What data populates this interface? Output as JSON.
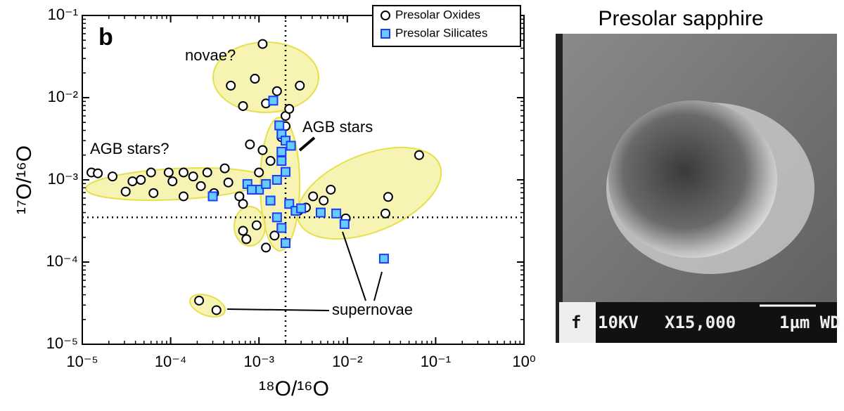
{
  "chart_data": {
    "type": "scatter",
    "panel_label": "b",
    "xlabel": "¹⁸O/¹⁶O",
    "ylabel": "¹⁷O/¹⁶O",
    "log_x": true,
    "log_y": true,
    "xlim": [
      1e-05,
      1
    ],
    "ylim": [
      1e-05,
      0.1
    ],
    "xticks": [
      {
        "value": 1e-05,
        "label": "10⁻⁵"
      },
      {
        "value": 0.0001,
        "label": "10⁻⁴"
      },
      {
        "value": 0.001,
        "label": "10⁻³"
      },
      {
        "value": 0.01,
        "label": "10⁻²"
      },
      {
        "value": 0.1,
        "label": "10⁻¹"
      },
      {
        "value": 1,
        "label": "10⁰"
      }
    ],
    "yticks": [
      {
        "value": 1e-05,
        "label": "10⁻⁵"
      },
      {
        "value": 0.0001,
        "label": "10⁻⁴"
      },
      {
        "value": 0.001,
        "label": "10⁻³"
      },
      {
        "value": 0.01,
        "label": "10⁻²"
      },
      {
        "value": 0.1,
        "label": "10⁻¹"
      }
    ],
    "reference_lines": {
      "x": 0.002,
      "y": 0.00035
    },
    "legend": "upper right",
    "annotations": [
      "novae?",
      "AGB stars",
      "AGB stars?",
      "supernovae"
    ],
    "series": [
      {
        "name": "Presolar Oxides",
        "color": "#ffffff",
        "edgecolor": "#000000",
        "marker": "circle",
        "x": [
          0.0011,
          0.0009,
          0.00048,
          0.0029,
          0.00066,
          0.0012,
          0.0016,
          0.065,
          0.029,
          0.027,
          0.0096,
          1.27e-05,
          1.5e-05,
          2.2e-05,
          3.1e-05,
          3.7e-05,
          4.6e-05,
          6e-05,
          6.4e-05,
          9.5e-05,
          0.000105,
          0.00014,
          0.00014,
          0.00018,
          0.00022,
          0.00026,
          0.00031,
          0.00041,
          0.00045,
          0.0006,
          0.00066,
          0.00079,
          0.0011,
          0.00135,
          0.001,
          0.00066,
          0.00072,
          0.0012,
          0.00094,
          0.0015,
          0.0041,
          0.0054,
          0.0065,
          0.0034,
          0.0028,
          0.00021,
          0.00033,
          0.002,
          0.002,
          0.0022,
          0.0018
        ],
        "values": [
          0.045,
          0.017,
          0.014,
          0.014,
          0.0079,
          0.0085,
          0.012,
          0.002,
          0.00062,
          0.00039,
          0.00034,
          0.00123,
          0.0012,
          0.0011,
          0.00072,
          0.00096,
          0.001,
          0.00123,
          0.00069,
          0.00123,
          0.00096,
          0.00123,
          0.00063,
          0.0011,
          0.00084,
          0.00123,
          0.00069,
          0.00138,
          0.00093,
          0.00063,
          0.00051,
          0.0027,
          0.0023,
          0.0017,
          0.00123,
          0.00024,
          0.00019,
          0.00015,
          0.00028,
          0.00021,
          0.00063,
          0.00056,
          0.00076,
          0.00046,
          0.00042,
          3.4e-05,
          2.6e-05,
          0.006,
          0.0045,
          0.0073,
          0.0033
        ]
      },
      {
        "name": "Presolar Silicates",
        "color": "#66ccff",
        "edgecolor": "#1a3cff",
        "marker": "square",
        "x": [
          0.00145,
          0.0017,
          0.0018,
          0.002,
          0.0023,
          0.0018,
          0.0018,
          0.002,
          0.0016,
          0.00074,
          0.0003,
          0.001,
          0.00135,
          0.0022,
          0.0026,
          0.0016,
          0.0018,
          0.002,
          0.005,
          0.0075,
          0.0093,
          0.026,
          0.003,
          0.00083,
          0.0012
        ],
        "values": [
          0.0092,
          0.0046,
          0.0036,
          0.003,
          0.0026,
          0.0022,
          0.0017,
          0.00125,
          0.001,
          0.00089,
          0.00063,
          0.00076,
          0.00056,
          0.00051,
          0.00042,
          0.00035,
          0.00026,
          0.00017,
          0.0004,
          0.00039,
          0.00029,
          0.00011,
          0.00045,
          0.00076,
          0.00089
        ]
      }
    ]
  },
  "photo": {
    "title": "Presolar sapphire",
    "caption": [
      "f",
      "10KV",
      "X15,000",
      "1µm WD"
    ]
  }
}
